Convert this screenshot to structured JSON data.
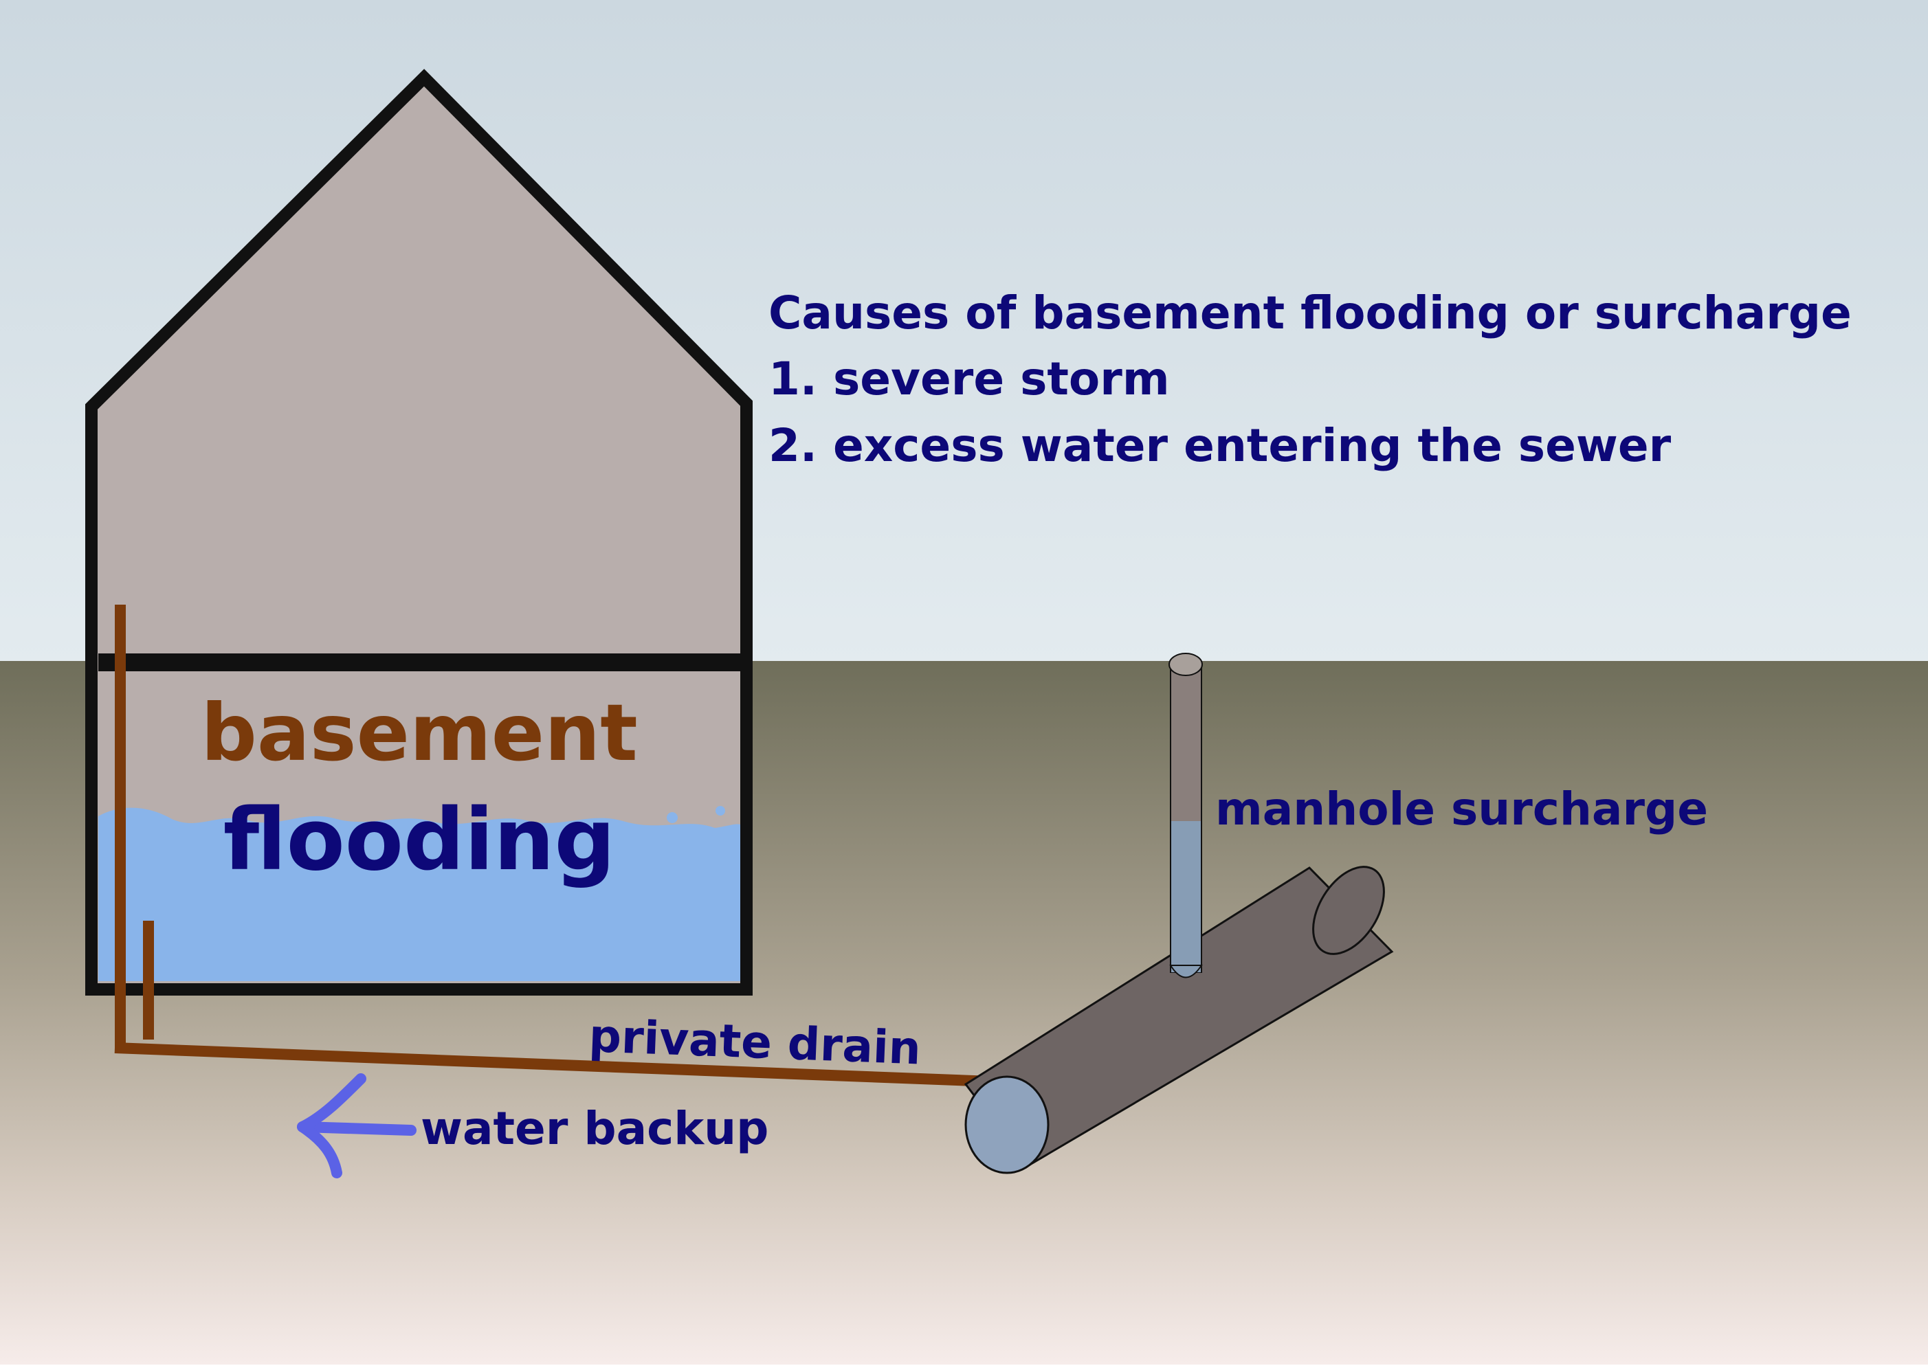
{
  "causes": {
    "heading": "Causes of basement flooding or surcharge",
    "items": [
      "1. severe storm",
      "2. excess water entering the sewer"
    ]
  },
  "labels": {
    "basement": "basement",
    "flooding": "flooding",
    "manhole_surcharge": "manhole surcharge",
    "private_drain": "private drain",
    "water_backup": "water backup"
  },
  "colors": {
    "sky_top": "#ccd8e0",
    "sky_bottom": "#e3ebef",
    "ground_top": "#6f6e5a",
    "ground_bottom": "#f6ecea",
    "house_fill": "#b8aeac",
    "outline": "#111111",
    "water": "#89b4ea",
    "drain_pipe": "#7a3a0b",
    "sewer_pipe": "#6e6564",
    "sewer_end": "#8fa3bd",
    "manhole": "#8a7f7c",
    "manhole_water": "#879db5",
    "label_blue": "#0d0878",
    "label_brown": "#7a3a0b",
    "arrow": "#5b62e6"
  }
}
